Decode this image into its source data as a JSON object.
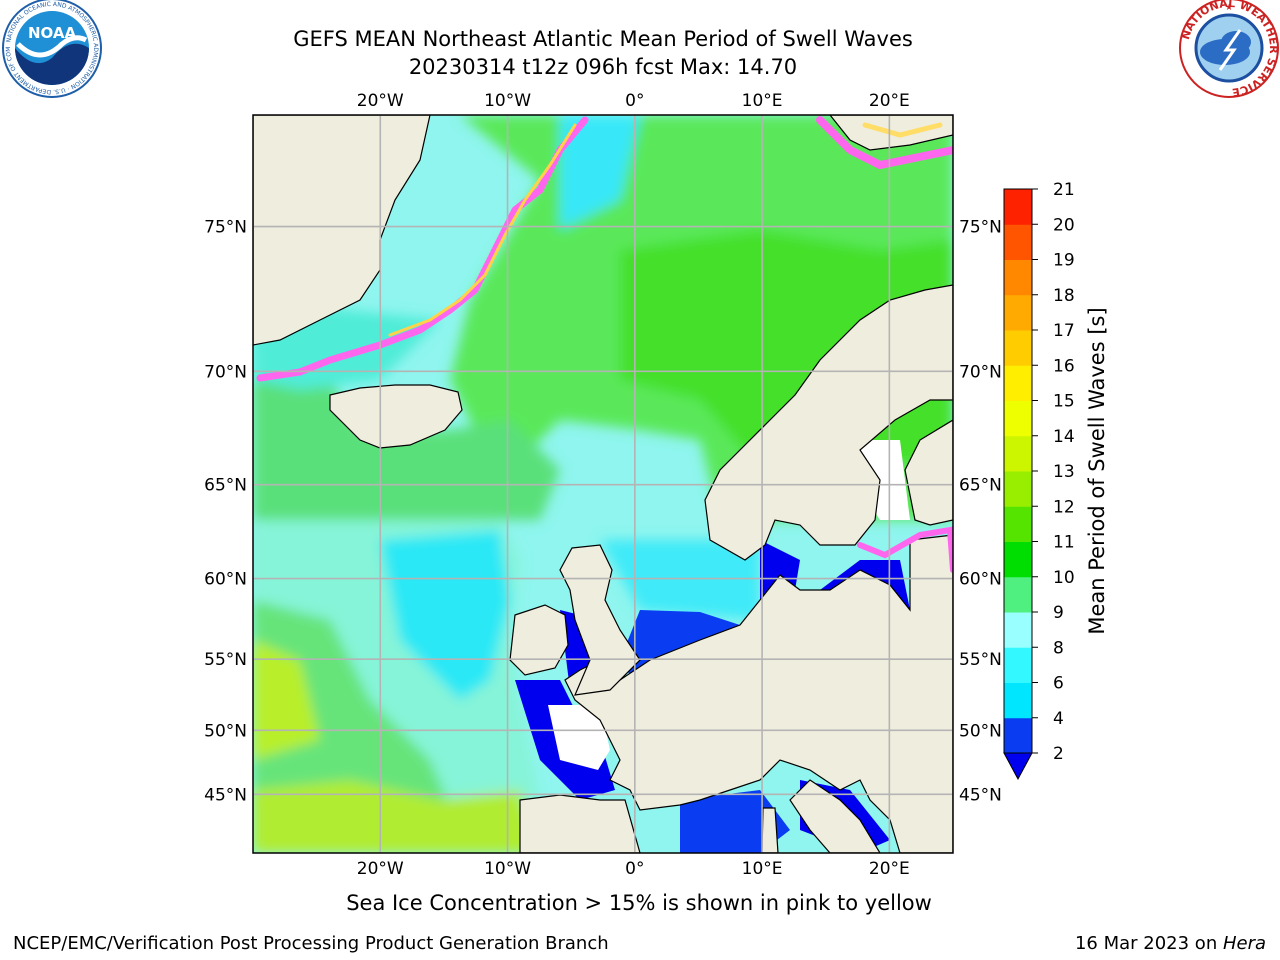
{
  "header": {
    "title_line1": "GEFS MEAN Northeast Atlantic Mean Period of Swell Waves",
    "title_line2": "20230314 t12z 096h fcst   Max: 14.70"
  },
  "logos": {
    "noaa": {
      "icon": "noaa-logo",
      "label": "NOAA",
      "ring_text": "NATIONAL OCEANIC AND ATMOSPHERIC ADMINISTRATION · U.S. DEPARTMENT OF COMMERCE"
    },
    "nws": {
      "icon": "nws-logo",
      "ring_text": "NATIONAL WEATHER SERVICE"
    }
  },
  "map": {
    "lon_range": [
      -30,
      25
    ],
    "lat_range": [
      40,
      78
    ],
    "lon_ticks": [
      {
        "lon": -20,
        "label": "20°W"
      },
      {
        "lon": -10,
        "label": "10°W"
      },
      {
        "lon": 0,
        "label": "0°"
      },
      {
        "lon": 10,
        "label": "10°E"
      },
      {
        "lon": 20,
        "label": "20°E"
      }
    ],
    "lat_ticks": [
      {
        "lat": 45,
        "label": "45°N"
      },
      {
        "lat": 50,
        "label": "50°N"
      },
      {
        "lat": 55,
        "label": "55°N"
      },
      {
        "lat": 60,
        "label": "60°N"
      },
      {
        "lat": 65,
        "label": "65°N"
      },
      {
        "lat": 70,
        "label": "70°N"
      },
      {
        "lat": 75,
        "label": "75°N"
      }
    ],
    "grid": true,
    "colors": {
      "land": "#efeddd",
      "grid": "#b4b4b4",
      "coast": "#000000",
      "no_data": "#ffffff"
    }
  },
  "colorbar": {
    "label": "Mean Period of Swell Waves [s]",
    "ticks": [
      "2",
      "4",
      "6",
      "8",
      "9",
      "10",
      "11",
      "12",
      "13",
      "14",
      "15",
      "16",
      "17",
      "18",
      "19",
      "20",
      "21"
    ],
    "colors": [
      "#0a3cf2",
      "#00e6ff",
      "#33f8ff",
      "#99ffff",
      "#4ff07f",
      "#00dd00",
      "#55e400",
      "#99ee00",
      "#ccf500",
      "#eeff00",
      "#ffee00",
      "#ffcc00",
      "#ffaa00",
      "#ff8800",
      "#ff5500",
      "#ff2200"
    ],
    "under_color": "#0000ee"
  },
  "note": "Sea Ice Concentration > 15% is shown in pink to yellow",
  "footer": {
    "left": "NCEP/EMC/Verification Post Processing Product Generation Branch",
    "right_prefix": "16 Mar 2023 on ",
    "right_machine": "Hera"
  }
}
